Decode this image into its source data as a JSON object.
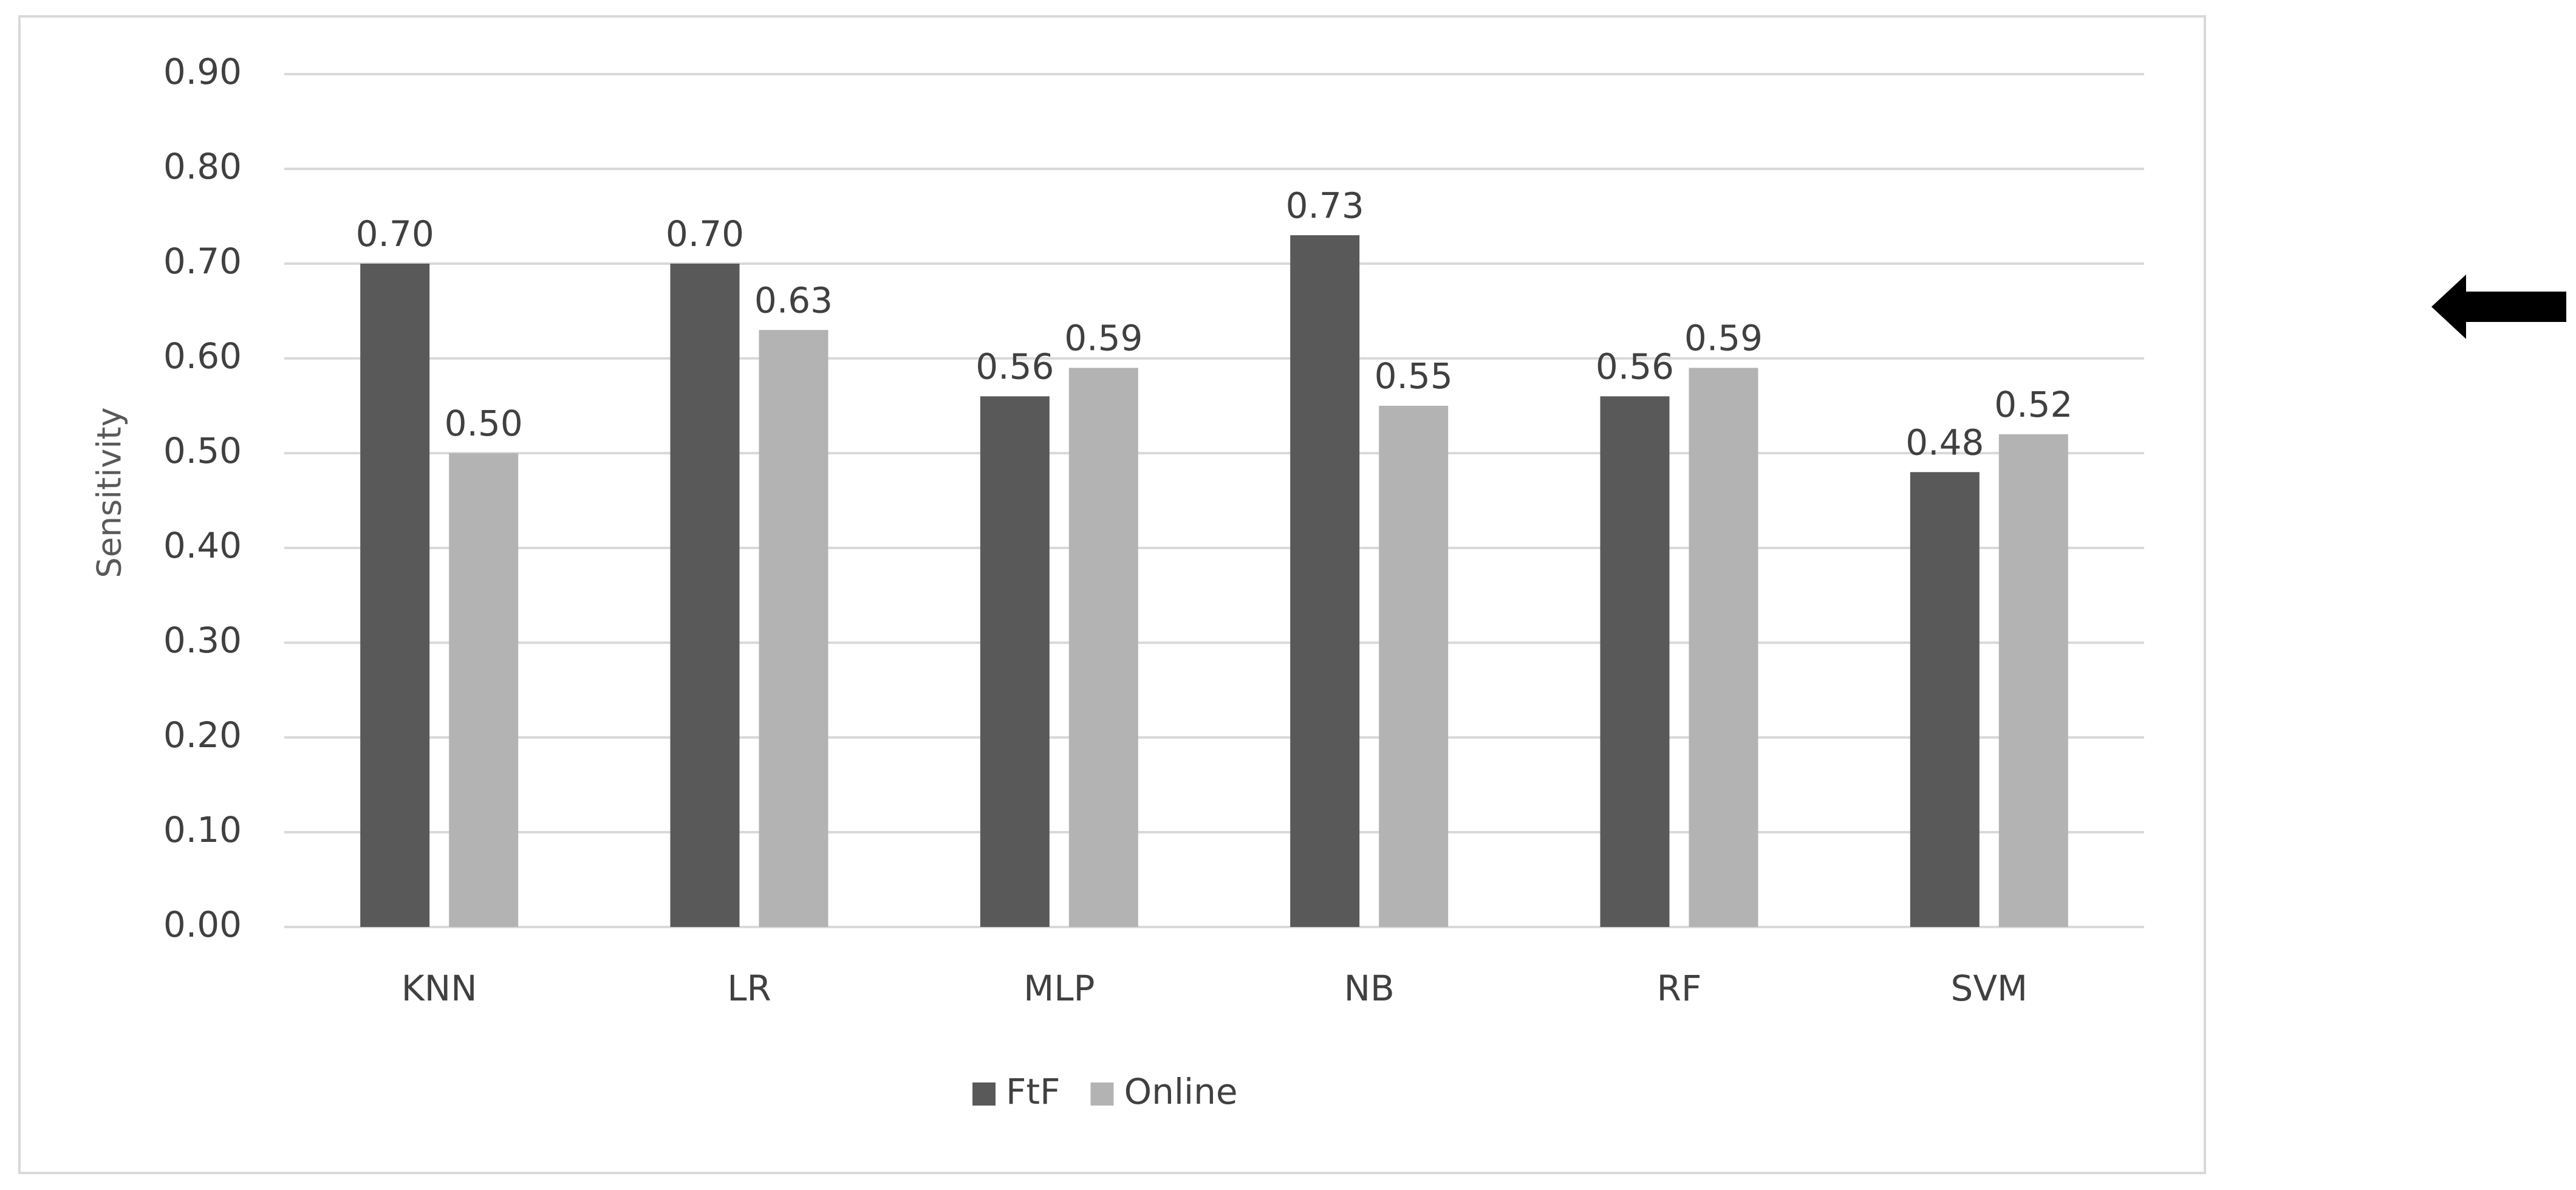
{
  "chart_data": {
    "type": "bar",
    "y_label": "Sensitivity",
    "categories": [
      "KNN",
      "LR",
      "MLP",
      "NB",
      "RF",
      "SVM"
    ],
    "series": [
      {
        "name": "FtF",
        "color": "#595959",
        "values": [
          0.7,
          0.7,
          0.56,
          0.73,
          0.56,
          0.48
        ],
        "value_labels": [
          "0.70",
          "0.70",
          "0.56",
          "0.73",
          "0.56",
          "0.48"
        ]
      },
      {
        "name": "Online",
        "color": "#b3b3b3",
        "values": [
          0.5,
          0.63,
          0.59,
          0.55,
          0.59,
          0.52
        ],
        "value_labels": [
          "0.50",
          "0.63",
          "0.59",
          "0.55",
          "0.59",
          "0.52"
        ]
      }
    ],
    "ylim": [
      0,
      0.9
    ],
    "yticks": [
      {
        "value": 0,
        "label": "0.00"
      },
      {
        "value": 0.1,
        "label": "0.10"
      },
      {
        "value": 0.2,
        "label": "0.20"
      },
      {
        "value": 0.3,
        "label": "0.30"
      },
      {
        "value": 0.4,
        "label": "0.40"
      },
      {
        "value": 0.5,
        "label": "0.50"
      },
      {
        "value": 0.6,
        "label": "0.60"
      },
      {
        "value": 0.7,
        "label": "0.70"
      },
      {
        "value": 0.8,
        "label": "0.80"
      },
      {
        "value": 0.9,
        "label": "0.90"
      }
    ],
    "grid": true,
    "legend": "bottom"
  }
}
